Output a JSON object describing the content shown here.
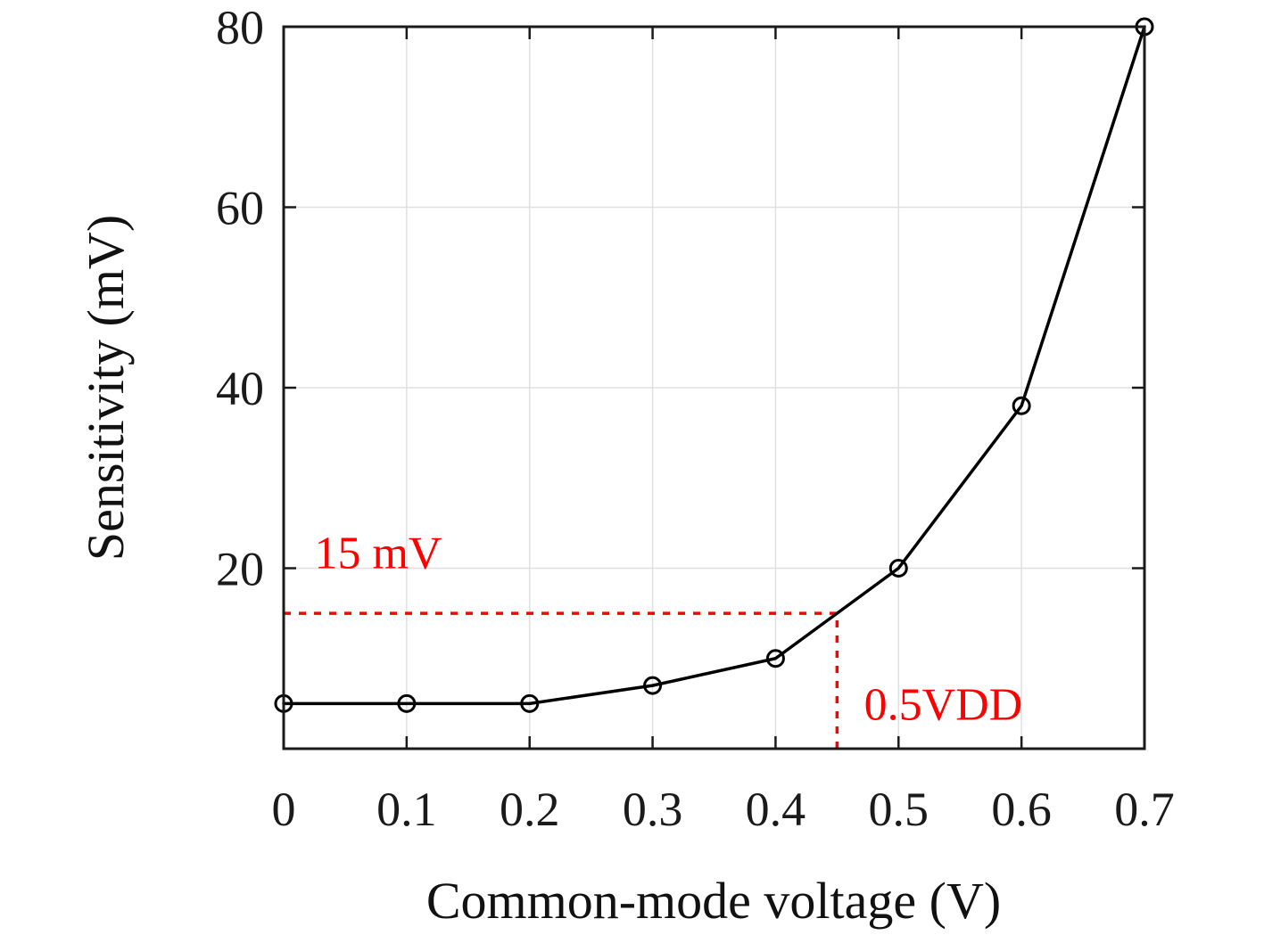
{
  "chart_data": {
    "type": "line",
    "title": "",
    "xlabel": "Common-mode voltage (V)",
    "ylabel": "Sensitivity (mV)",
    "x": [
      0,
      0.1,
      0.2,
      0.3,
      0.4,
      0.5,
      0.6,
      0.7
    ],
    "values": [
      5,
      5,
      5,
      7,
      10,
      20,
      38,
      80
    ],
    "series_name": "Sensitivity",
    "xlim": [
      0,
      0.7
    ],
    "ylim": [
      0,
      80
    ],
    "xticks": [
      0,
      0.1,
      0.2,
      0.3,
      0.4,
      0.5,
      0.6,
      0.7
    ],
    "xtick_labels": [
      "0",
      "0.1",
      "0.2",
      "0.3",
      "0.4",
      "0.5",
      "0.6",
      "0.7"
    ],
    "yticks": [
      20,
      40,
      60,
      80
    ],
    "ytick_labels": [
      "20",
      "40",
      "60",
      "80"
    ],
    "grid": true,
    "legend": "none",
    "marker": "circle-open",
    "line_color": "#000000",
    "colors": {
      "grid": "#e0e0e0",
      "axis": "#1a1a1a",
      "annotation": "#ff0000"
    },
    "annotations": [
      {
        "type": "hline-segment",
        "y": 15,
        "x_from": 0,
        "x_to": 0.45,
        "style": "dotted",
        "color": "#ff0000"
      },
      {
        "type": "vline-segment",
        "x": 0.45,
        "y_from": 0,
        "y_to": 15,
        "style": "dotted",
        "color": "#ff0000"
      },
      {
        "type": "text",
        "label": "15 mV",
        "x": 0.025,
        "y": 20,
        "color": "#ff0000"
      },
      {
        "type": "text",
        "label": "0.5VDD",
        "x": 0.472,
        "y": 3.2,
        "color": "#ff0000"
      }
    ]
  }
}
